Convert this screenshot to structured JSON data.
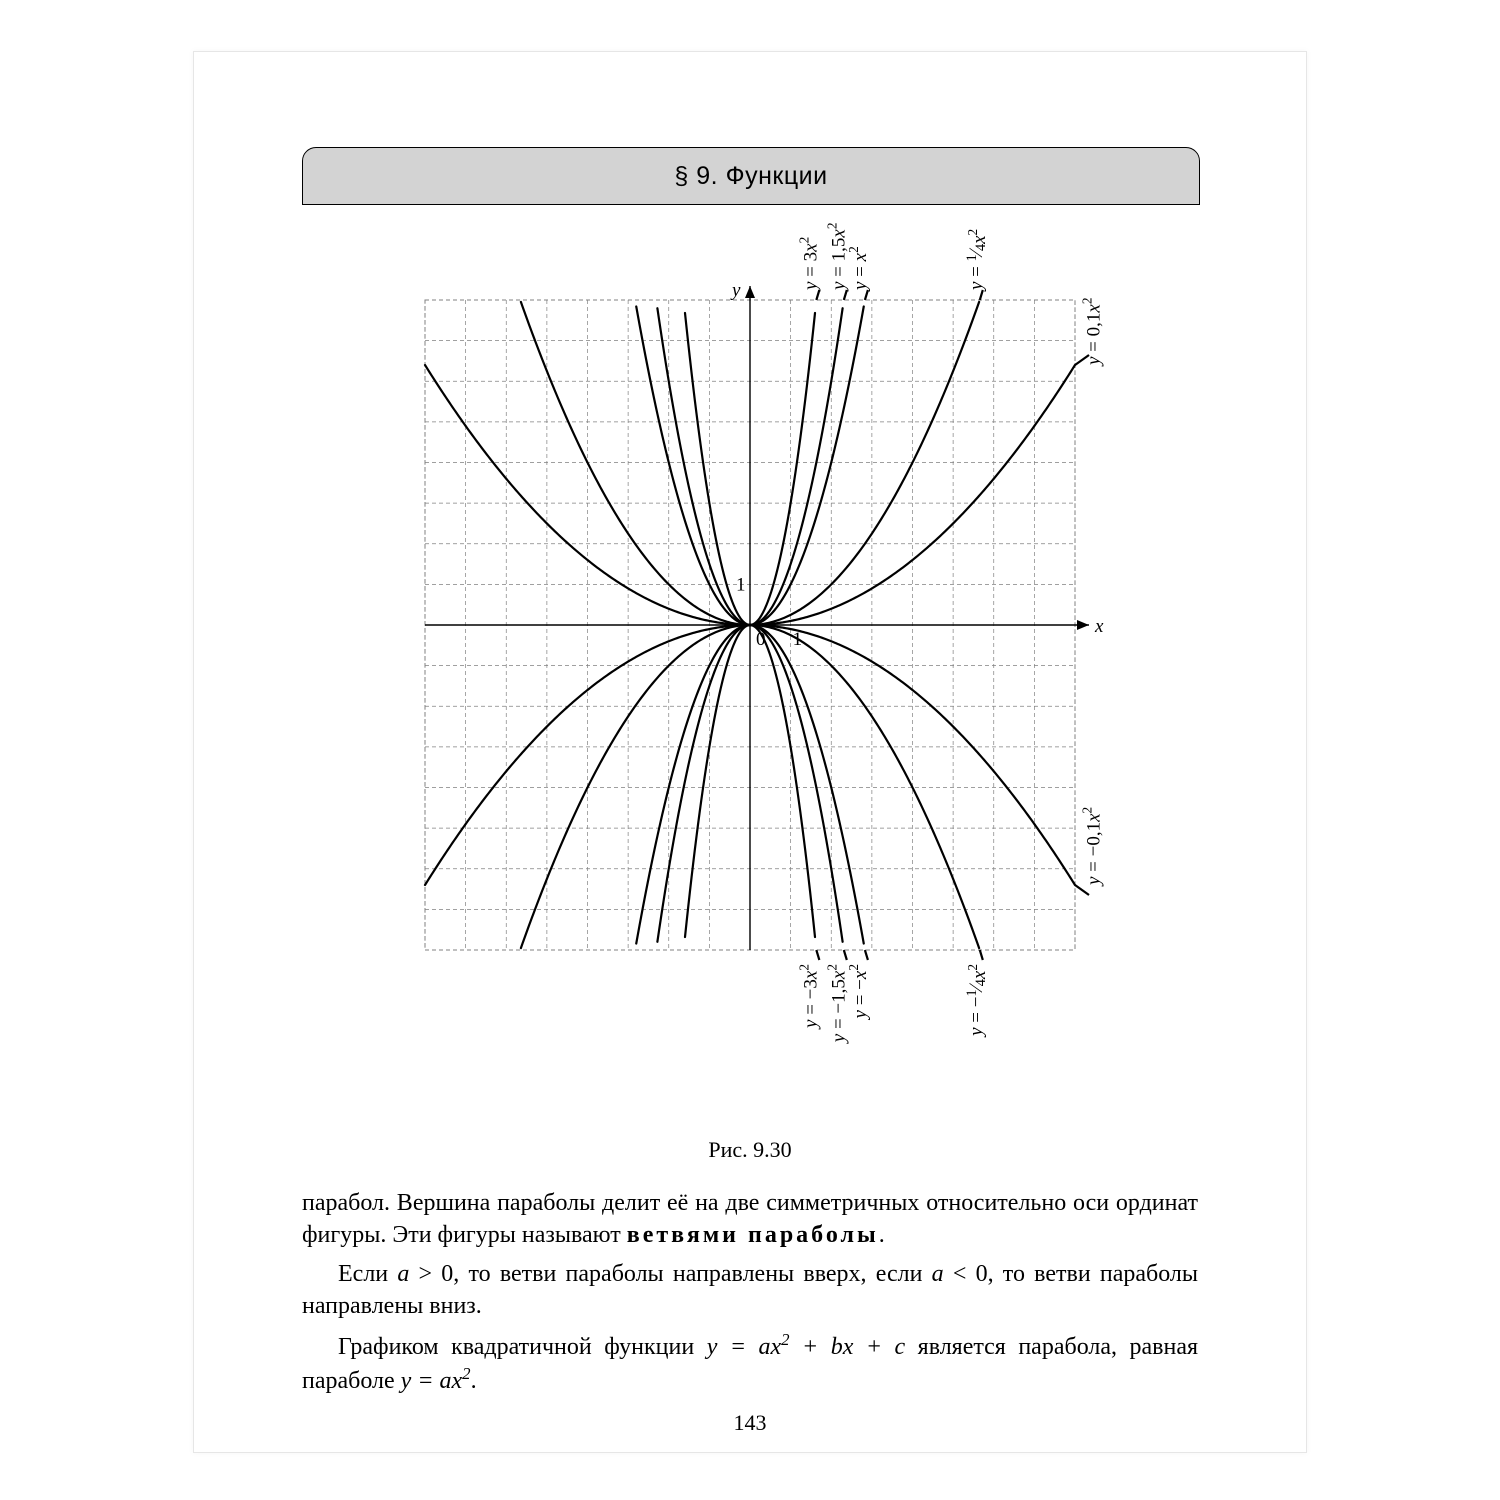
{
  "header": {
    "title": "§ 9. Функции"
  },
  "caption": "Рис. 9.30",
  "page_number": "143",
  "chart": {
    "type": "line",
    "background_color": "#ffffff",
    "grid_color": "#808080",
    "grid_dash": "4,3",
    "axis_color": "#000000",
    "curve_color": "#000000",
    "curve_width": 2.2,
    "xlim": [
      -8,
      8
    ],
    "ylim": [
      -8,
      8
    ],
    "tick_step": 1,
    "axis_labels": {
      "x": "x",
      "y": "y"
    },
    "tick_labels": {
      "one_x": "1",
      "one_y": "1",
      "origin": "0"
    },
    "label_fontsize": 19,
    "series": [
      {
        "a": 3,
        "label": "y = 3x²"
      },
      {
        "a": 1.5,
        "label": "y = 1,5x²"
      },
      {
        "a": 1,
        "label": "y = x²"
      },
      {
        "a": 0.25,
        "label": "y = ¼x²"
      },
      {
        "a": 0.1,
        "label": "y = 0,1x²"
      },
      {
        "a": -0.1,
        "label": "y = −0,1x²"
      },
      {
        "a": -0.25,
        "label": "y = −¼x²"
      },
      {
        "a": -1,
        "label": "y = −x²"
      },
      {
        "a": -1.5,
        "label": "y = −1,5x²"
      },
      {
        "a": -3,
        "label": "y = −3x²"
      }
    ],
    "annotation_positions_top": [
      {
        "series": 0,
        "along": 0.6
      },
      {
        "series": 1,
        "along": 0.68
      },
      {
        "series": 2,
        "along": 0.73
      },
      {
        "series": 3,
        "along": 0.87
      },
      {
        "series": 4,
        "along": 1.08,
        "side": "right"
      }
    ],
    "annotation_positions_bottom": [
      {
        "series": 9,
        "along": 0.6
      },
      {
        "series": 8,
        "along": 0.68
      },
      {
        "series": 7,
        "along": 0.73
      },
      {
        "series": 6,
        "along": 0.88
      },
      {
        "series": 5,
        "along": 1.08,
        "side": "right"
      }
    ]
  },
  "paragraphs": {
    "p1_a": "парабол. Вершина параболы делит её на две симметричных относительно оси ординат фигуры. Эти фигуры называют ",
    "p1_b_bold": "ветвями параболы",
    "p1_c": ".",
    "p2_a": "Если ",
    "p2_b": "a",
    "p2_c": " > 0, то ветви параболы направлены вверх, если ",
    "p2_d": "a",
    "p2_e": " < 0, то ветви параболы направлены вниз.",
    "p3_a": "Графиком квадратичной функции ",
    "p3_b": "y = ax² + bx + c",
    "p3_c": " является парабола, равная параболе ",
    "p3_d": "y = ax²",
    "p3_e": "."
  }
}
